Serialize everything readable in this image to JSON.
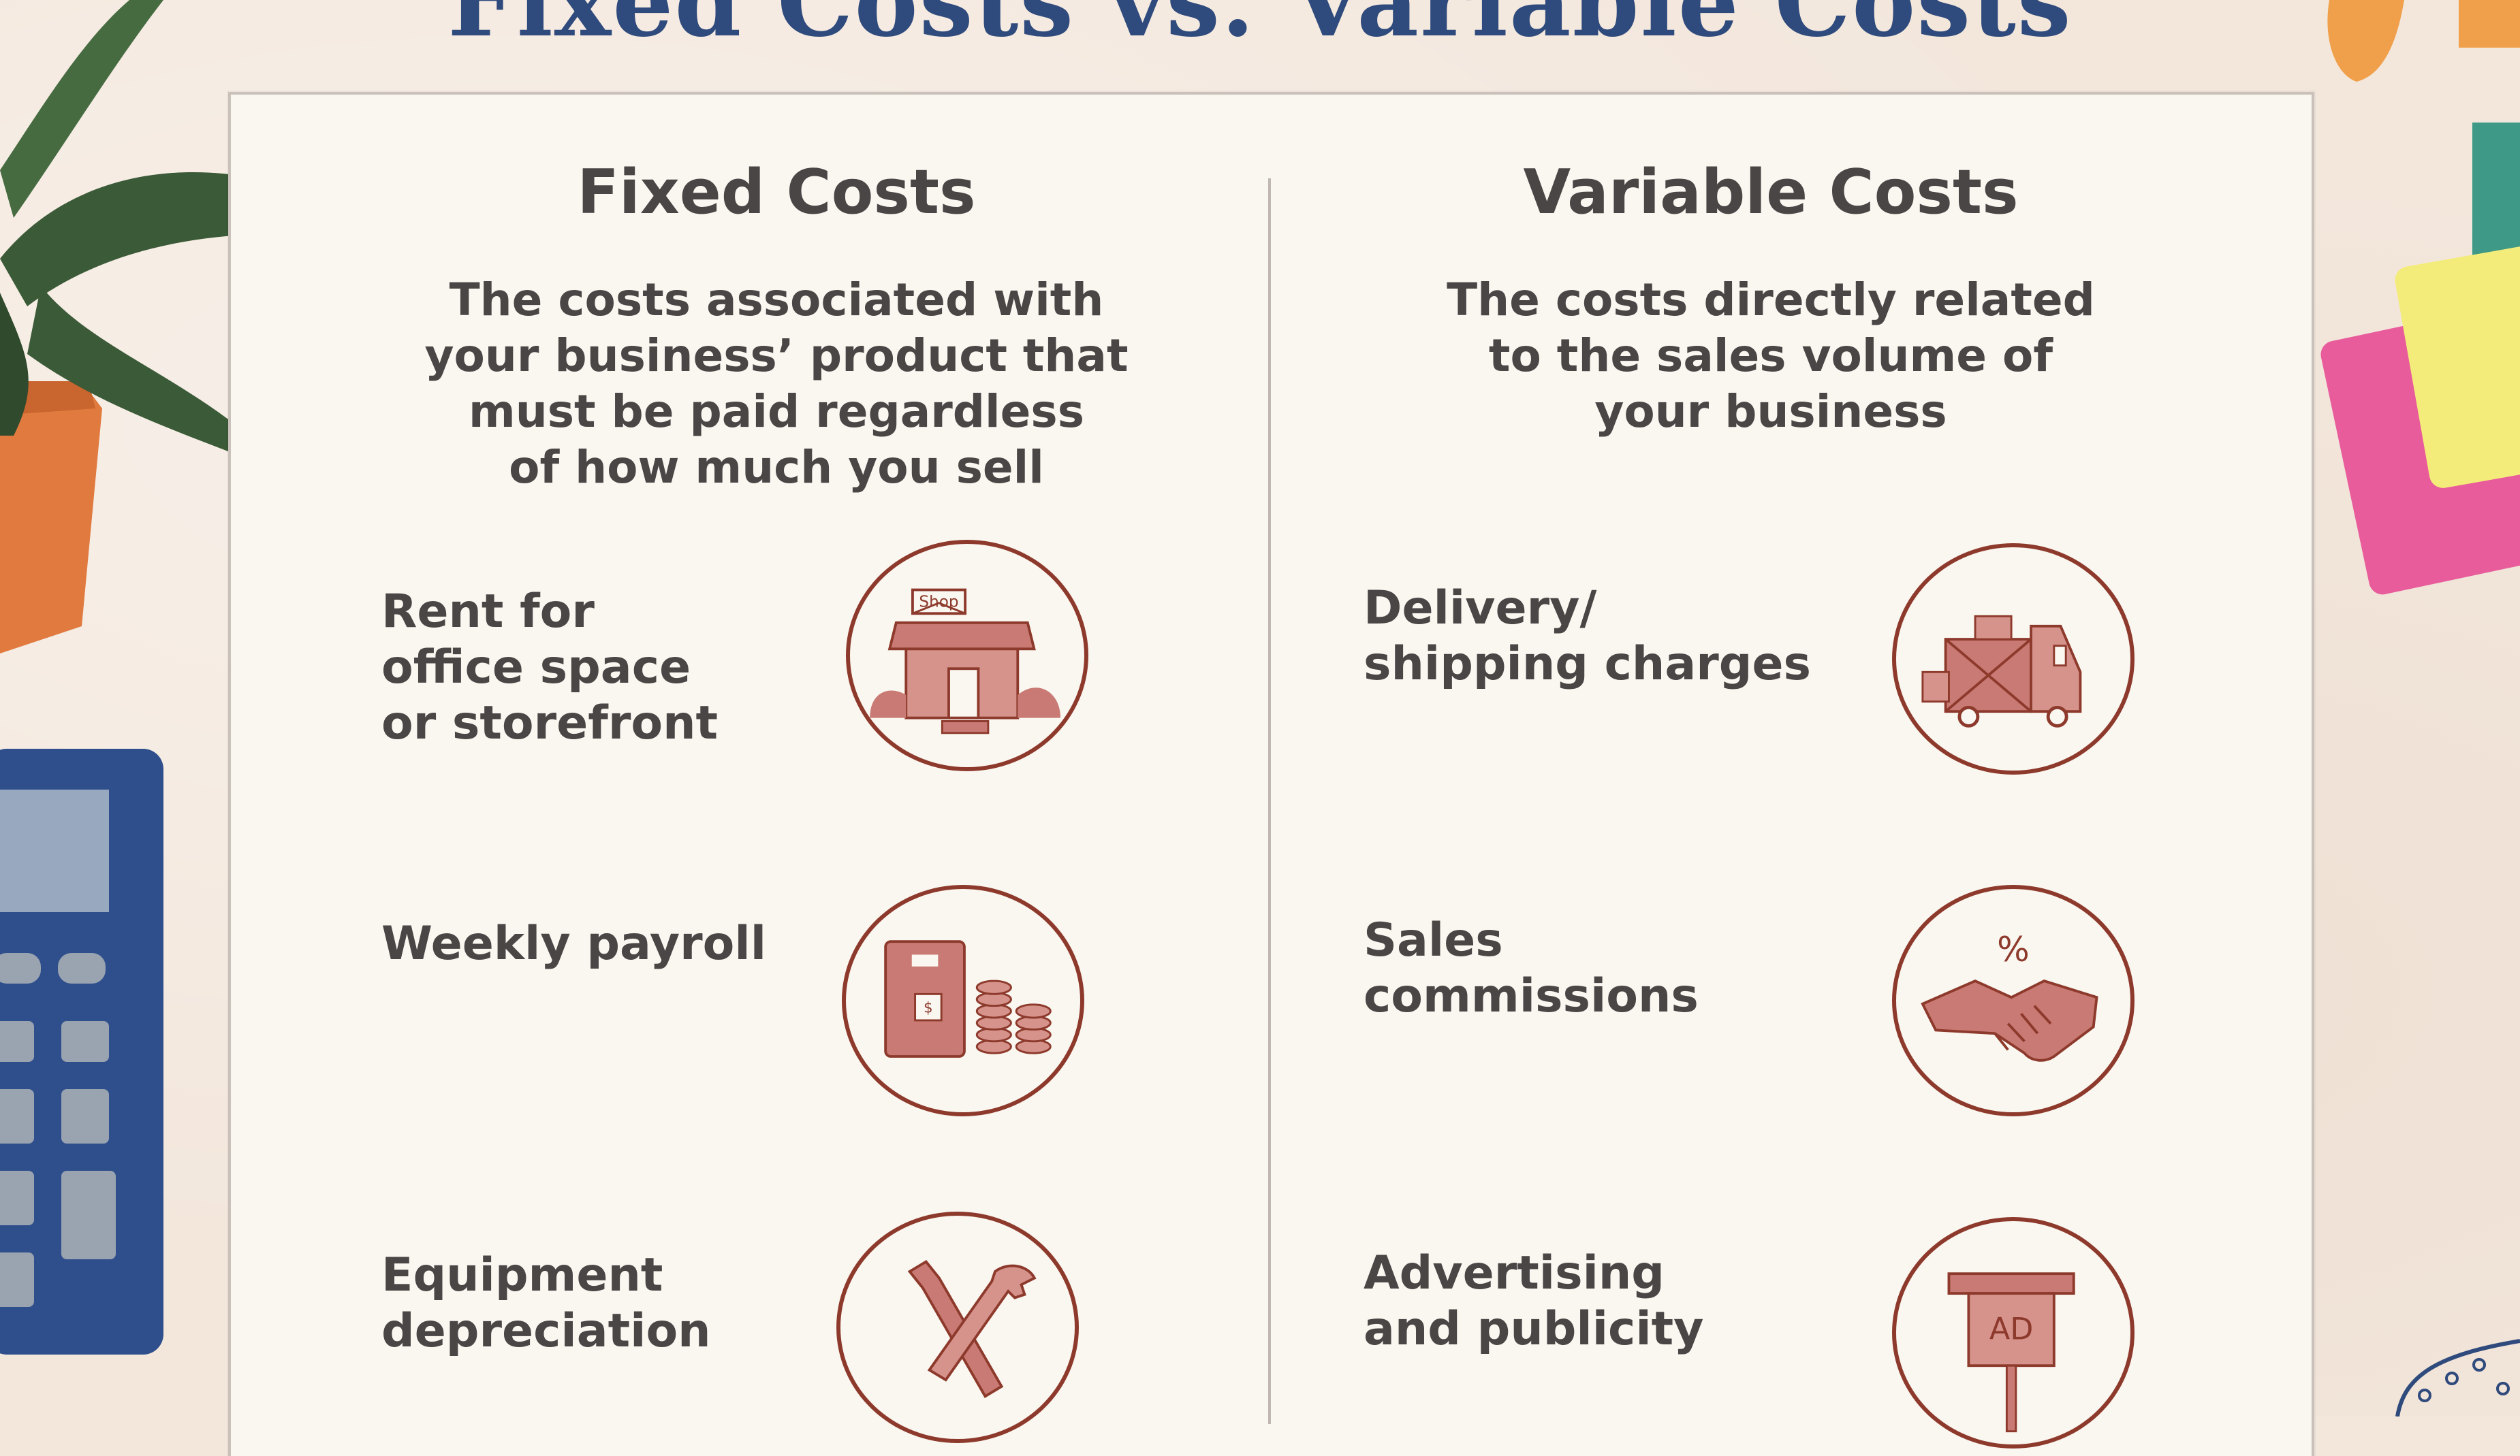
{
  "title": "Fixed Costs vs. Variable Costs",
  "columns": [
    {
      "heading": "Fixed Costs",
      "description_lines": [
        "The costs associated with",
        "your business’ product that",
        "must be paid regardless",
        "of how much you sell"
      ],
      "items": [
        {
          "lines": [
            "Rent for",
            "office space",
            "or storefront"
          ],
          "icon": "shop-icon",
          "icon_text": "Shop"
        },
        {
          "lines": [
            "Weekly payroll"
          ],
          "icon": "payroll-coins-icon",
          "icon_text": "$"
        },
        {
          "lines": [
            "Equipment",
            "depreciation"
          ],
          "icon": "tools-icon"
        }
      ]
    },
    {
      "heading": "Variable Costs",
      "description_lines": [
        "The costs directly related",
        "to the sales volume of",
        "your business"
      ],
      "items": [
        {
          "lines": [
            "Delivery/",
            "shipping charges"
          ],
          "icon": "delivery-truck-icon"
        },
        {
          "lines": [
            "Sales",
            "commissions"
          ],
          "icon": "handshake-icon",
          "icon_text": "%"
        },
        {
          "lines": [
            "Advertising",
            "and publicity"
          ],
          "icon": "ad-sign-icon",
          "icon_text": "AD"
        }
      ]
    }
  ],
  "colors": {
    "title": "#2f4a7c",
    "text": "#4a4646",
    "icon_stroke": "#8d3a2c",
    "icon_fill": "#c97a74",
    "paper": "#faf6f0",
    "background": "#f3e7dc"
  }
}
